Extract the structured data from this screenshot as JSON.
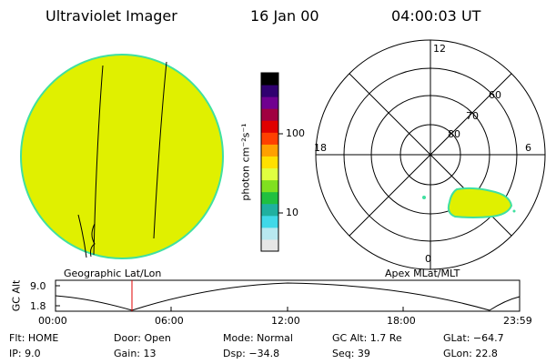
{
  "header": {
    "instrument": "Ultraviolet Imager",
    "date": "16 Jan 00",
    "time": "04:00:03 UT"
  },
  "colorbar": {
    "unit": "photon cm⁻²s⁻¹",
    "ticks": [
      "100",
      "10"
    ],
    "colors": [
      "#e6e6e6",
      "#b8e8f0",
      "#40d8e8",
      "#20b0a0",
      "#20c040",
      "#80e020",
      "#e0ff40",
      "#ffe000",
      "#ffa000",
      "#ff4000",
      "#e00000",
      "#a00040",
      "#700090",
      "#300070",
      "#000000"
    ]
  },
  "polar": {
    "clock_labels": {
      "top": "12",
      "left": "18",
      "right": "6",
      "bottom": "0"
    },
    "lat_labels": [
      "60",
      "70",
      "80"
    ]
  },
  "panels": {
    "left_label": "Geographic Lat/Lon",
    "right_label": "Apex MLat/MLT"
  },
  "alt_plot": {
    "ylabel": "GC Alt",
    "yticks": [
      "9.0",
      "1.8"
    ],
    "xticks": [
      "00:00",
      "06:00",
      "12:00",
      "18:00",
      "23:59"
    ]
  },
  "footer": {
    "flt": "Flt: HOME",
    "ip": "IP:  9.0",
    "door": "Door: Open",
    "gain": "Gain: 13",
    "mode": "Mode: Normal",
    "dsp": "Dsp:  −34.8",
    "gcalt": "GC Alt: 1.7 Re",
    "seq": "Seq: 39",
    "glat": "GLat:  −64.7",
    "glon": "GLon:  22.8"
  },
  "colors": {
    "disk_fill": "#e0f000",
    "disk_edge": "#40e0a0",
    "marker": "#e00000"
  }
}
